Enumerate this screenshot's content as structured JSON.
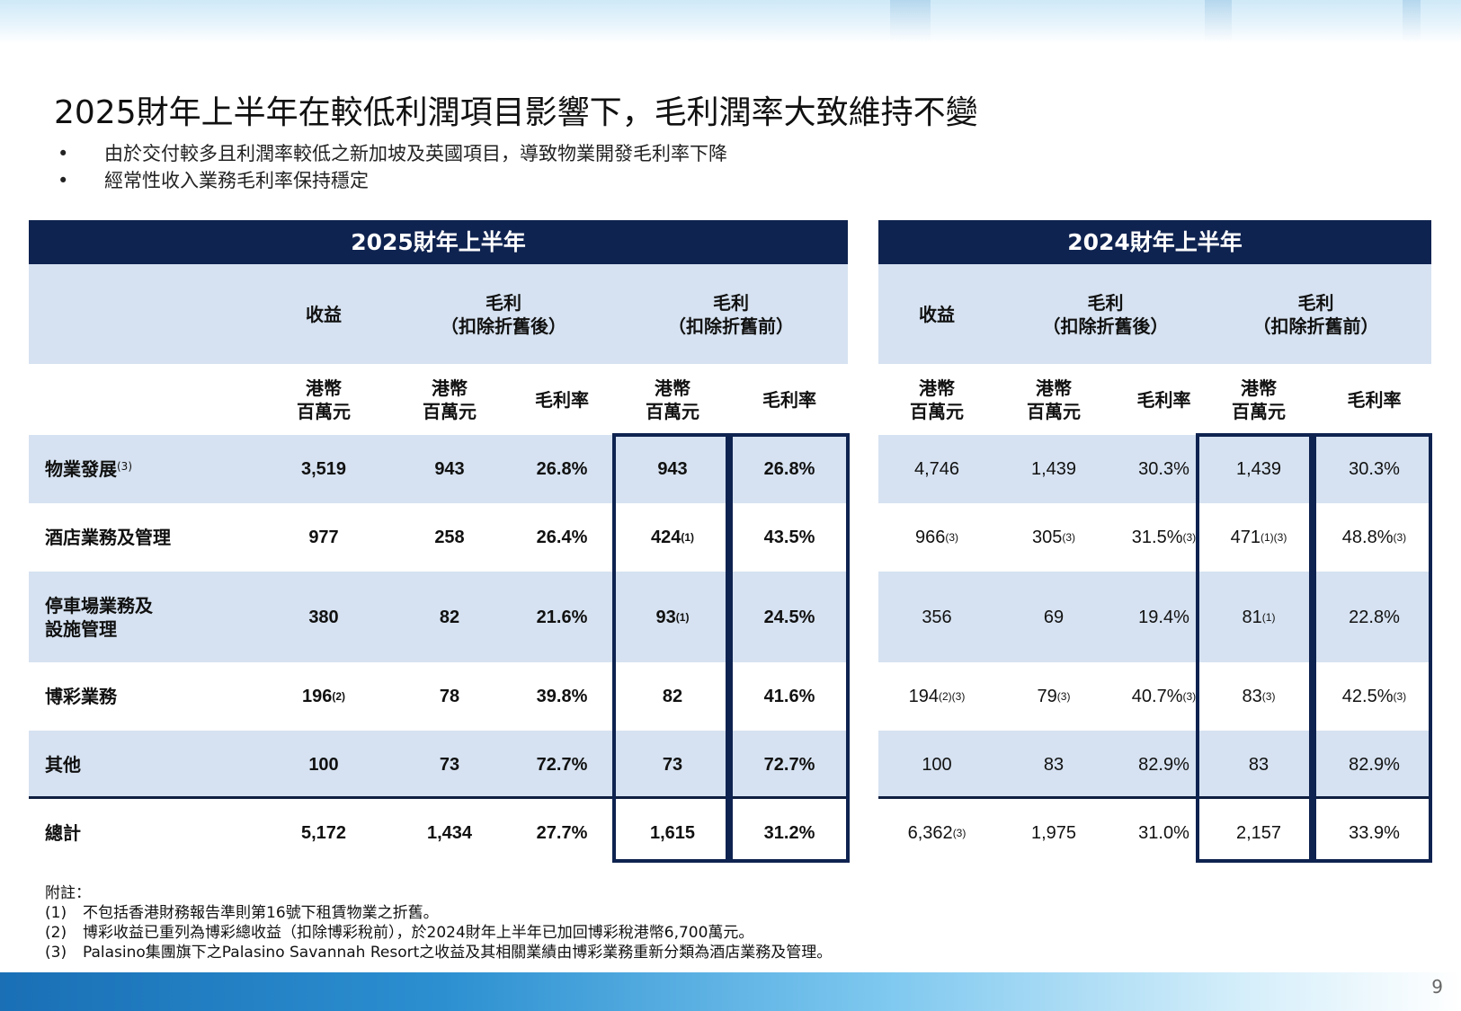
{
  "title": "2025財年上半年在較低利潤項目影響下，毛利潤率大致維持不變",
  "bullets": [
    "由於交付較多且利潤率較低之新加坡及英國項目，導致物業開發毛利率下降",
    "經常性收入業務毛利率保持穩定"
  ],
  "bullet_symbol": "•",
  "periods": [
    "2025財年上半年",
    "2024財年上半年"
  ],
  "group_headers": {
    "revenue": "收益",
    "gp_after_line1": "毛利",
    "gp_after_line2": "（扣除折舊後）",
    "gp_before_line1": "毛利",
    "gp_before_line2": "（扣除折舊前）"
  },
  "unit_header": {
    "line1": "港幣",
    "line2": "百萬元"
  },
  "margin_header": "毛利率",
  "rows": [
    {
      "label": "物業發展",
      "label_sup": "(3)",
      "fy25": [
        "3,519",
        "943",
        "26.8%",
        "943",
        "26.8%"
      ],
      "fy25_sup": [
        "",
        "",
        "",
        "",
        ""
      ],
      "fy24": [
        "4,746",
        "1,439",
        "30.3%",
        "1,439",
        "30.3%"
      ],
      "fy24_sup": [
        "",
        "",
        "",
        "",
        ""
      ]
    },
    {
      "label": "酒店業務及管理",
      "label_sup": "",
      "fy25": [
        "977",
        "258",
        "26.4%",
        "424",
        "43.5%"
      ],
      "fy25_sup": [
        "",
        "",
        "",
        "(1)",
        ""
      ],
      "fy24": [
        "966",
        "305",
        "31.5%",
        "471",
        "48.8%"
      ],
      "fy24_sup": [
        "(3)",
        "(3)",
        "(3)",
        "(1)(3)",
        "(3)"
      ]
    },
    {
      "label": "停車場業務及",
      "label2": "設施管理",
      "label_sup": "",
      "fy25": [
        "380",
        "82",
        "21.6%",
        "93",
        "24.5%"
      ],
      "fy25_sup": [
        "",
        "",
        "",
        "(1)",
        ""
      ],
      "fy24": [
        "356",
        "69",
        "19.4%",
        "81",
        "22.8%"
      ],
      "fy24_sup": [
        "",
        "",
        "",
        "(1)",
        ""
      ]
    },
    {
      "label": "博彩業務",
      "label_sup": "",
      "fy25": [
        "196",
        "78",
        "39.8%",
        "82",
        "41.6%"
      ],
      "fy25_sup": [
        "(2)",
        "",
        "",
        "",
        ""
      ],
      "fy24": [
        "194",
        "79",
        "40.7%",
        "83",
        "42.5%"
      ],
      "fy24_sup": [
        "(2)(3)",
        "(3)",
        "(3)",
        "(3)",
        "(3)"
      ]
    },
    {
      "label": "其他",
      "label_sup": "",
      "fy25": [
        "100",
        "73",
        "72.7%",
        "73",
        "72.7%"
      ],
      "fy25_sup": [
        "",
        "",
        "",
        "",
        ""
      ],
      "fy24": [
        "100",
        "83",
        "82.9%",
        "83",
        "82.9%"
      ],
      "fy24_sup": [
        "",
        "",
        "",
        "",
        ""
      ]
    },
    {
      "label": "總計",
      "label_sup": "",
      "fy25": [
        "5,172",
        "1,434",
        "27.7%",
        "1,615",
        "31.2%"
      ],
      "fy25_sup": [
        "",
        "",
        "",
        "",
        ""
      ],
      "fy24": [
        "6,362",
        "1,975",
        "31.0%",
        "2,157",
        "33.9%"
      ],
      "fy24_sup": [
        "(3)",
        "",
        "",
        "",
        ""
      ]
    }
  ],
  "notes_title": "附註：",
  "notes": [
    {
      "key": "(1)",
      "text": "不包括香港財務報告準則第16號下租賃物業之折舊。"
    },
    {
      "key": "(2)",
      "text": "博彩收益已重列為博彩總收益（扣除博彩稅前），於2024財年上半年已加回博彩稅港幣6,700萬元。"
    },
    {
      "key": "(3)",
      "text": "Palasino集團旗下之Palasino Savannah Resort之收益及其相關業績由博彩業務重新分類為酒店業務及管理。"
    }
  ],
  "page_number": "9"
}
